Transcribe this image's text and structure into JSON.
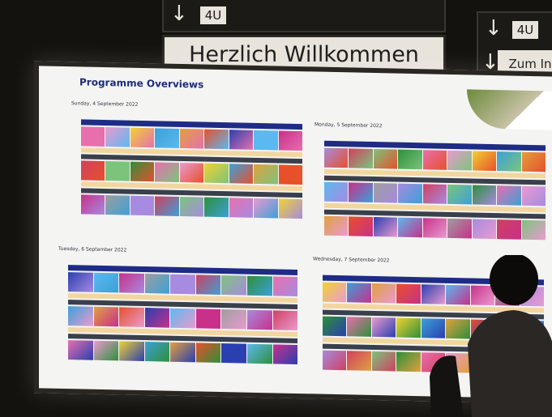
{
  "signs": {
    "top_left_code": "4U",
    "welcome": "Herzlich Willkommen",
    "right_code": "4U",
    "right_direction": "Zum In"
  },
  "board": {
    "title": "Programme Overviews",
    "days": [
      {
        "label": "Sunday, 4 September 2022"
      },
      {
        "label": "Monday, 5 September 2022"
      },
      {
        "label": "Tuesday, 6 September 2022"
      },
      {
        "label": "Wednesday, 7 September 2022"
      }
    ]
  },
  "palette": [
    "#e86fae",
    "#e8502a",
    "#a78be0",
    "#e99bd0",
    "#2a3fb0",
    "#d04060",
    "#f0d232",
    "#5cb8f0",
    "#7cc47c",
    "#3ca0d8",
    "#c8308a",
    "#2e8f3a",
    "#e0a040",
    "#9e9e9e"
  ],
  "colors": {
    "header_blue": "#1e2c86",
    "band_tan": "#f2d6a0",
    "band_dark": "#3a3f4c",
    "board_bg": "#f4f4f2"
  }
}
